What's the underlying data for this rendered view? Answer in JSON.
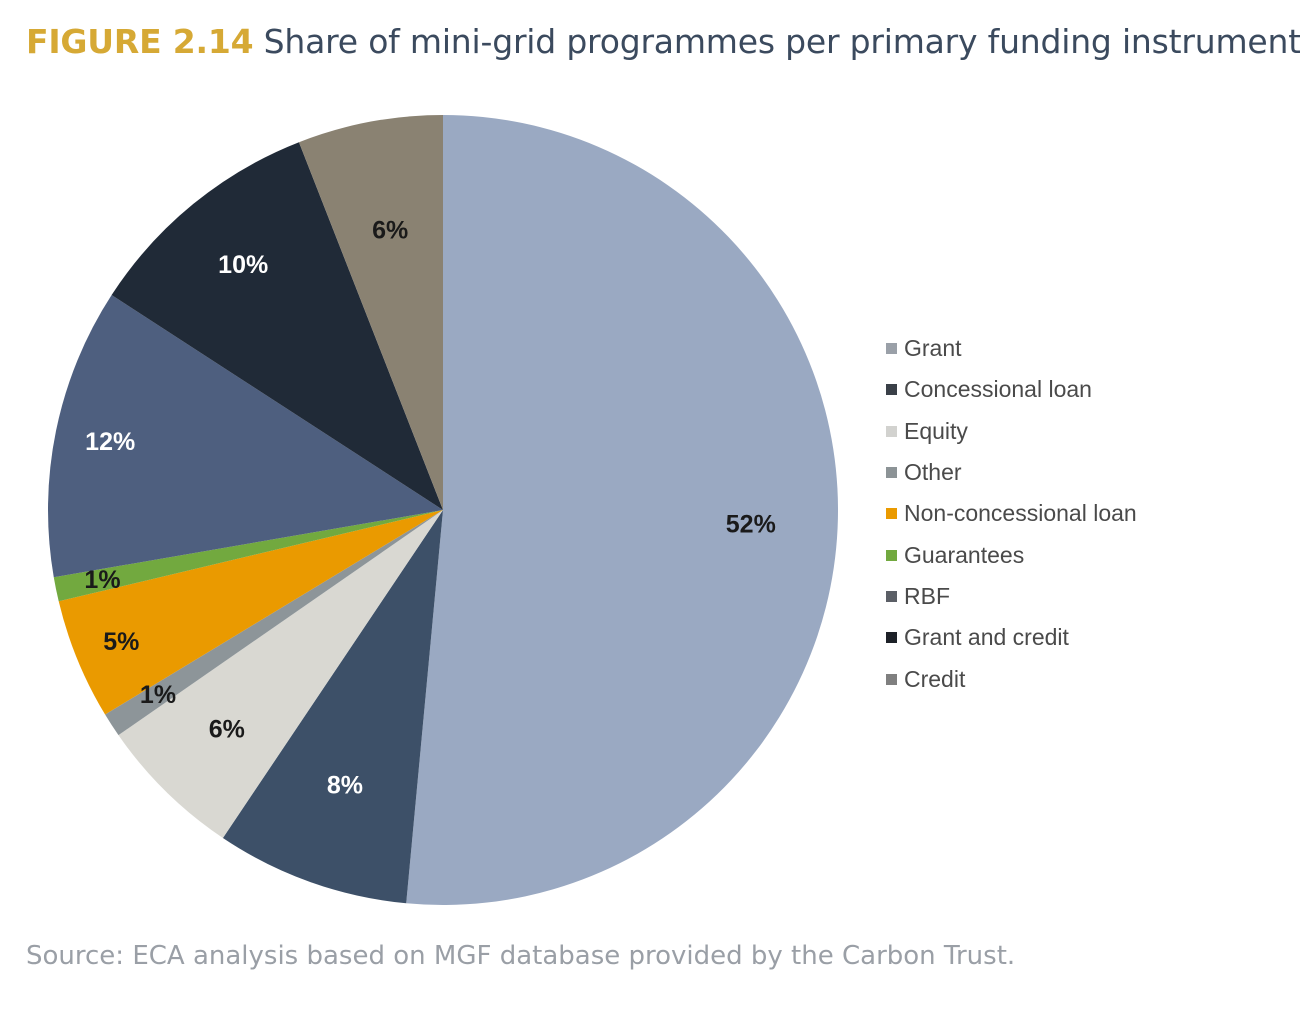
{
  "figure": {
    "number": "FIGURE 2.14",
    "title": "Share of mini-grid programmes per primary funding instrument",
    "source": "Source: ECA analysis based on MGF database provided by the Carbon Trust."
  },
  "colors": {
    "figure_number": "#d6a935",
    "title_text": "#3b4a5e",
    "source_text": "#9a9fa6"
  },
  "chart_data": {
    "type": "pie",
    "start": "12 o'clock",
    "direction": "clockwise",
    "legend_position": "right",
    "slices": [
      {
        "value": 52,
        "label": "52%",
        "color": "#9aa9c2",
        "label_color": "#1a1a1a"
      },
      {
        "value": 8,
        "label": "8%",
        "color": "#3d5068",
        "label_color": "#ffffff"
      },
      {
        "value": 6,
        "label": "6%",
        "color": "#d9d8d2",
        "label_color": "#1a1a1a"
      },
      {
        "value": 1,
        "label": "1%",
        "color": "#8d9599",
        "label_color": "#1a1a1a"
      },
      {
        "value": 5,
        "label": "5%",
        "color": "#ea9a00",
        "label_color": "#1a1a1a"
      },
      {
        "value": 1,
        "label": "1%",
        "color": "#72a93f",
        "label_color": "#1a1a1a"
      },
      {
        "value": 12,
        "label": "12%",
        "color": "#4e5f7f",
        "label_color": "#ffffff"
      },
      {
        "value": 10,
        "label": "10%",
        "color": "#202a37",
        "label_color": "#ffffff"
      },
      {
        "value": 6,
        "label": "6%",
        "color": "#8a8272",
        "label_color": "#1a1a1a"
      }
    ],
    "legend": [
      {
        "label": "Grant",
        "color": "#9aa0a8"
      },
      {
        "label": "Concessional loan",
        "color": "#3a4048"
      },
      {
        "label": "Equity",
        "color": "#d2d2cf"
      },
      {
        "label": "Other",
        "color": "#8c9396"
      },
      {
        "label": "Non-concessional loan",
        "color": "#ea9a00"
      },
      {
        "label": "Guarantees",
        "color": "#72a93f"
      },
      {
        "label": "RBF",
        "color": "#5b5f66"
      },
      {
        "label": "Grant and credit",
        "color": "#1d2128"
      },
      {
        "label": "Credit",
        "color": "#7f7f7f"
      }
    ]
  }
}
